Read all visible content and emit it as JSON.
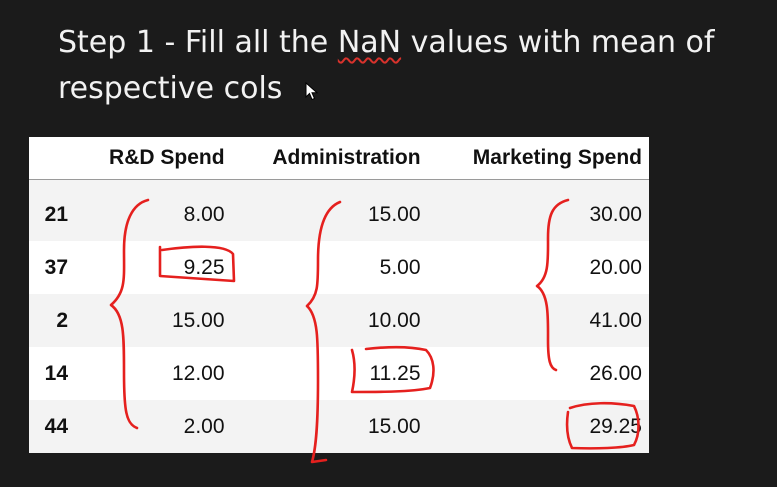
{
  "slide": {
    "title_line1_prefix": "Step 1 - Fill all the ",
    "title_highlight": "NaN",
    "title_line1_suffix": " values with mean of",
    "title_line2": "respective cols"
  },
  "table": {
    "columns": [
      "",
      "R&D Spend",
      "Administration",
      "Marketing Spend"
    ],
    "rows": [
      {
        "index": "21",
        "rd": "8.00",
        "admin": "15.00",
        "marketing": "30.00"
      },
      {
        "index": "37",
        "rd": "9.25",
        "admin": "5.00",
        "marketing": "20.00"
      },
      {
        "index": "2",
        "rd": "15.00",
        "admin": "10.00",
        "marketing": "41.00"
      },
      {
        "index": "14",
        "rd": "12.00",
        "admin": "11.25",
        "marketing": "26.00"
      },
      {
        "index": "44",
        "rd": "2.00",
        "admin": "15.00",
        "marketing": "29.25"
      }
    ]
  },
  "annotations": {
    "color": "#e5201e",
    "circled_values": [
      "9.25",
      "11.25",
      "29.25"
    ],
    "braces": [
      "R&D Spend",
      "Administration",
      "Marketing Spend"
    ]
  },
  "colors": {
    "background": "#1b1b1b",
    "title_text": "#f2f2f2",
    "table_bg": "#ffffff",
    "stripe": "#f3f3f3"
  },
  "icons": [
    "mouse-cursor-icon"
  ]
}
